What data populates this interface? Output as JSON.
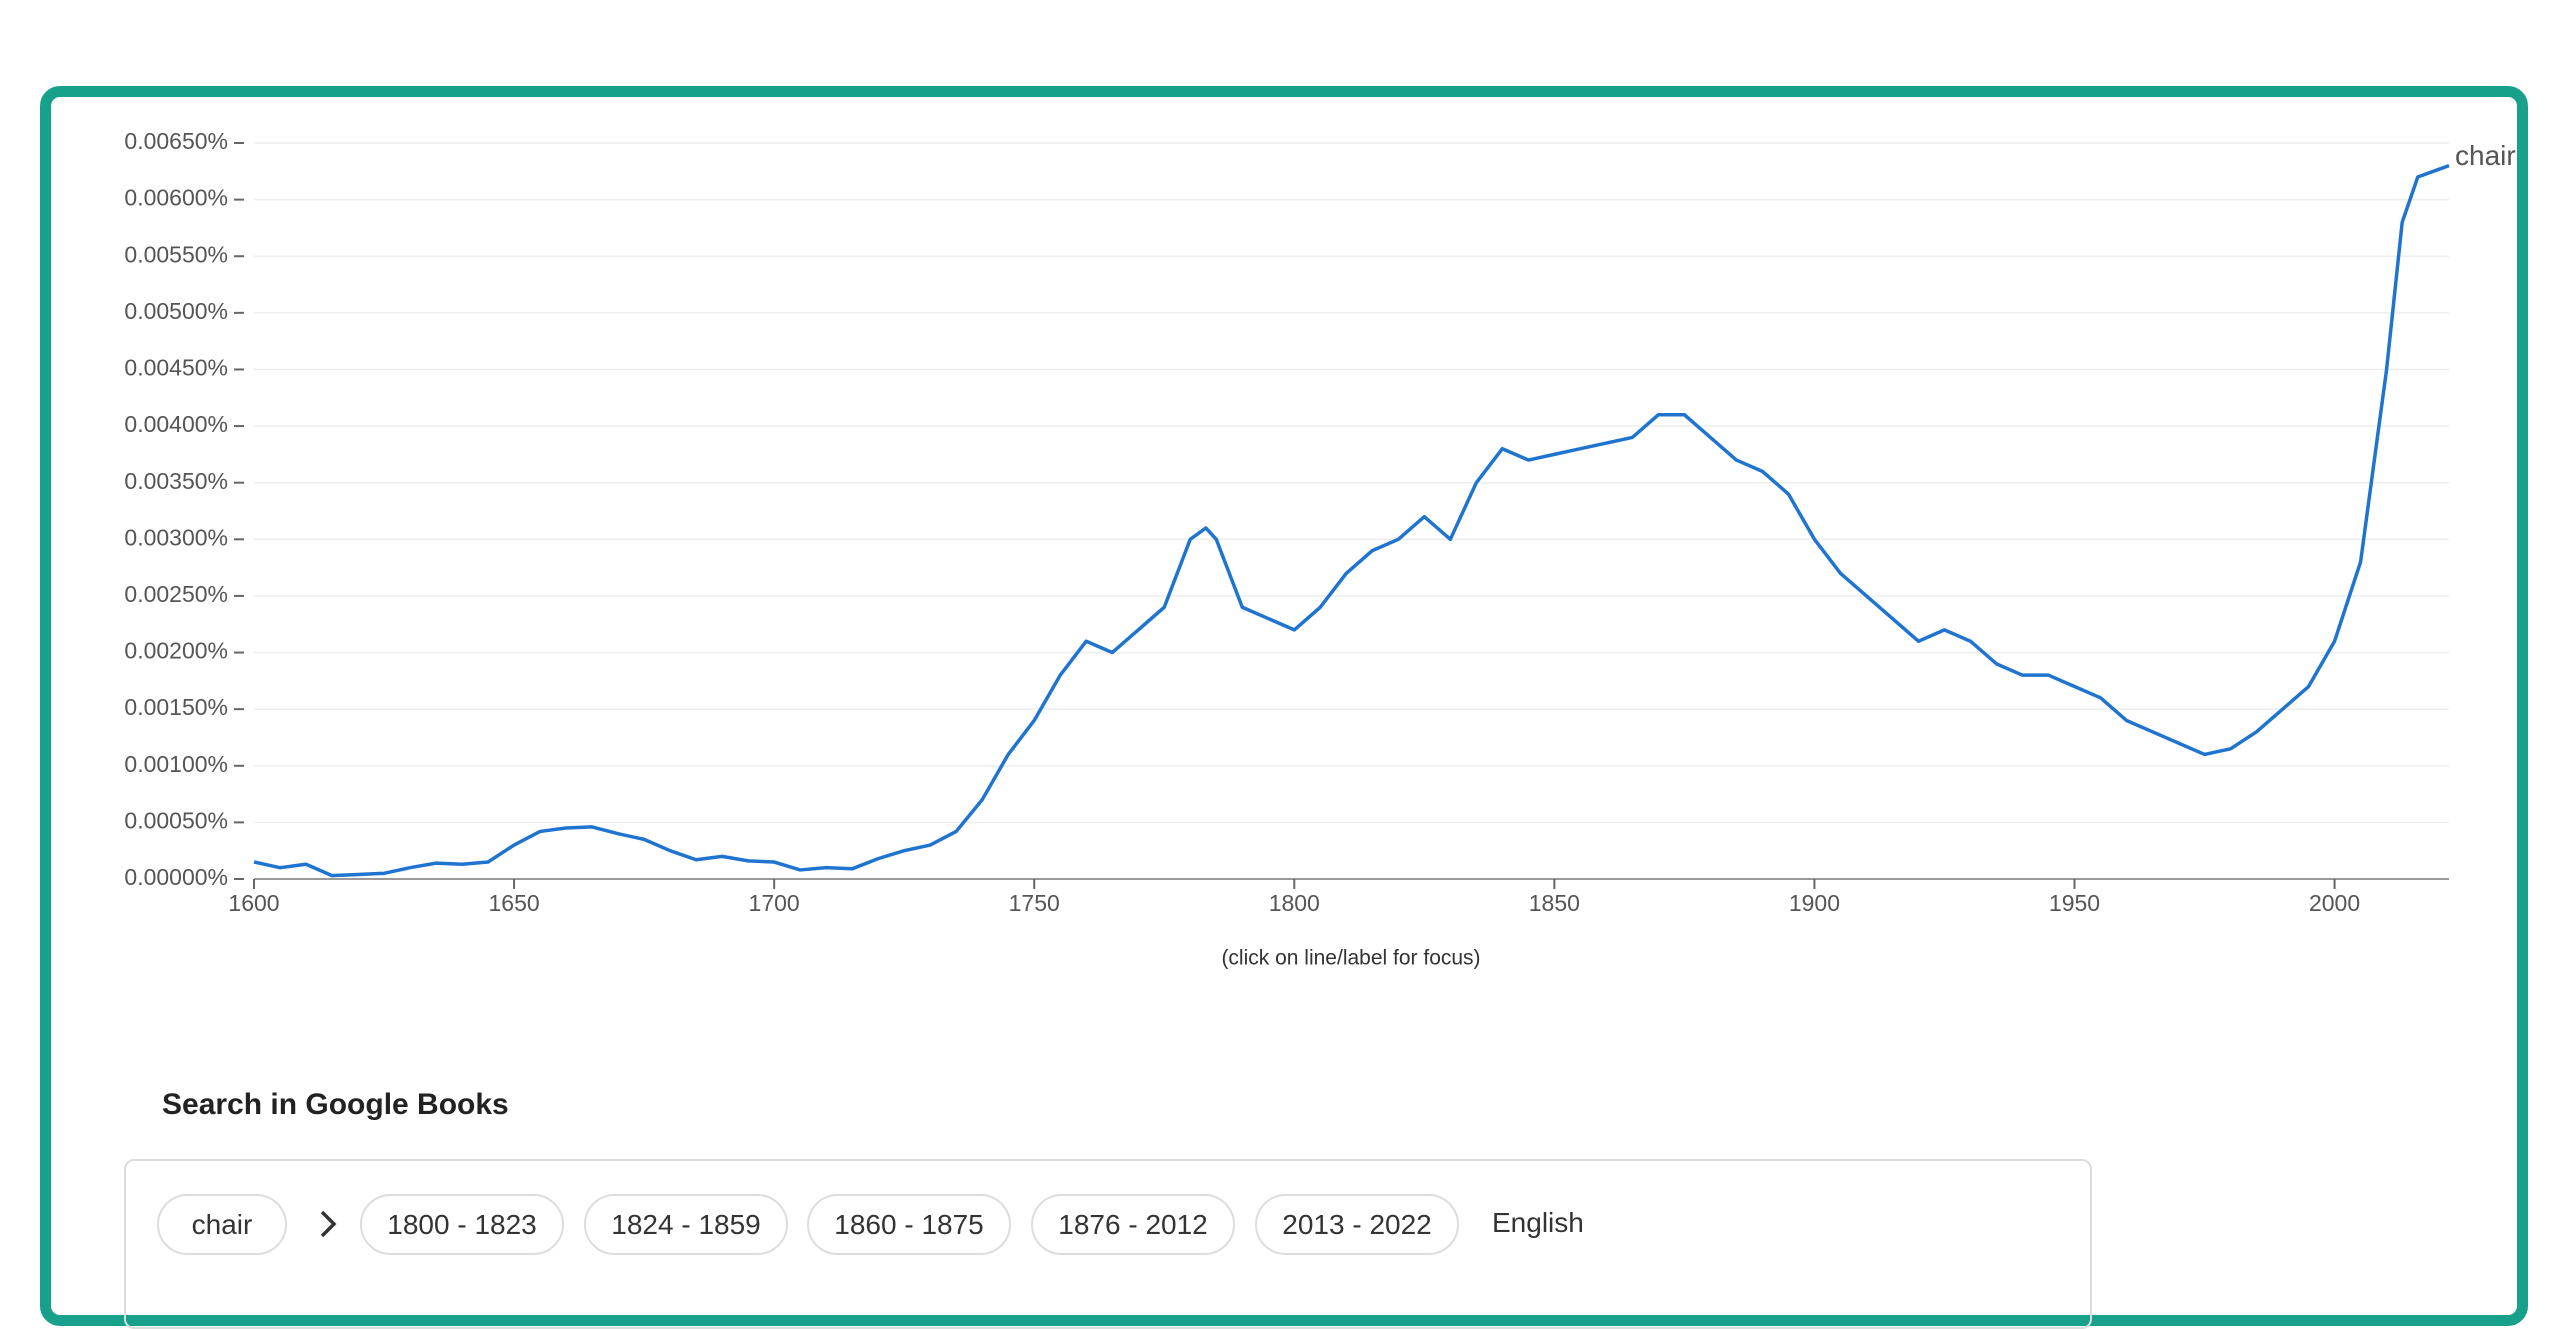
{
  "chart_data": {
    "type": "line",
    "xlim": [
      1600,
      2022
    ],
    "ylim": [
      0,
      0.0065
    ],
    "xticks": [
      1600,
      1650,
      1700,
      1750,
      1800,
      1850,
      1900,
      1950,
      2000
    ],
    "yticks": [
      {
        "value": 0,
        "label": "0.00000%"
      },
      {
        "value": 0.0005,
        "label": "0.00050%"
      },
      {
        "value": 0.001,
        "label": "0.00100%"
      },
      {
        "value": 0.0015,
        "label": "0.00150%"
      },
      {
        "value": 0.002,
        "label": "0.00200%"
      },
      {
        "value": 0.0025,
        "label": "0.00250%"
      },
      {
        "value": 0.003,
        "label": "0.00300%"
      },
      {
        "value": 0.0035,
        "label": "0.00350%"
      },
      {
        "value": 0.004,
        "label": "0.00400%"
      },
      {
        "value": 0.0045,
        "label": "0.00450%"
      },
      {
        "value": 0.005,
        "label": "0.00500%"
      },
      {
        "value": 0.0055,
        "label": "0.00550%"
      },
      {
        "value": 0.006,
        "label": "0.00600%"
      },
      {
        "value": 0.0065,
        "label": "0.00650%"
      }
    ],
    "grid": true,
    "x": [
      1600,
      1605,
      1610,
      1615,
      1620,
      1625,
      1630,
      1635,
      1640,
      1645,
      1650,
      1655,
      1660,
      1665,
      1670,
      1675,
      1680,
      1685,
      1690,
      1695,
      1700,
      1705,
      1710,
      1715,
      1720,
      1725,
      1730,
      1735,
      1740,
      1745,
      1750,
      1755,
      1760,
      1765,
      1770,
      1775,
      1780,
      1783,
      1785,
      1790,
      1795,
      1800,
      1805,
      1810,
      1815,
      1820,
      1825,
      1830,
      1835,
      1840,
      1845,
      1850,
      1855,
      1860,
      1865,
      1870,
      1875,
      1880,
      1885,
      1890,
      1895,
      1900,
      1905,
      1910,
      1915,
      1920,
      1925,
      1930,
      1935,
      1940,
      1945,
      1950,
      1955,
      1960,
      1965,
      1970,
      1975,
      1980,
      1985,
      1990,
      1995,
      2000,
      2005,
      2010,
      2013,
      2016,
      2019,
      2022
    ],
    "series": [
      {
        "name": "chair",
        "color": "#1f74d0",
        "values": [
          0.00015,
          0.0001,
          0.00013,
          3e-05,
          4e-05,
          5e-05,
          0.0001,
          0.00014,
          0.00013,
          0.00015,
          0.0003,
          0.00042,
          0.00045,
          0.00046,
          0.0004,
          0.00035,
          0.00025,
          0.00017,
          0.0002,
          0.00016,
          0.00015,
          8e-05,
          0.0001,
          9e-05,
          0.00018,
          0.00025,
          0.0003,
          0.00042,
          0.0007,
          0.0011,
          0.0014,
          0.0018,
          0.0021,
          0.002,
          0.0022,
          0.0024,
          0.003,
          0.0031,
          0.003,
          0.0024,
          0.0023,
          0.0022,
          0.0024,
          0.0027,
          0.0029,
          0.003,
          0.0032,
          0.003,
          0.0035,
          0.0038,
          0.0037,
          0.00375,
          0.0038,
          0.00385,
          0.0039,
          0.0041,
          0.0041,
          0.0039,
          0.0037,
          0.0036,
          0.0034,
          0.003,
          0.0027,
          0.0025,
          0.0023,
          0.0021,
          0.0022,
          0.0021,
          0.0019,
          0.0018,
          0.0018,
          0.0017,
          0.0016,
          0.0014,
          0.0013,
          0.0012,
          0.0011,
          0.00115,
          0.0013,
          0.0015,
          0.0017,
          0.0021,
          0.0028,
          0.0045,
          0.0058,
          0.0062,
          0.00625,
          0.0063
        ]
      }
    ],
    "note": "(click on line/label for focus)"
  },
  "search": {
    "title": "Search in Google Books",
    "term": "chair",
    "ranges": [
      "1800 - 1823",
      "1824 - 1859",
      "1860 - 1875",
      "1876 - 2012",
      "2013 - 2022"
    ],
    "language": "English"
  }
}
